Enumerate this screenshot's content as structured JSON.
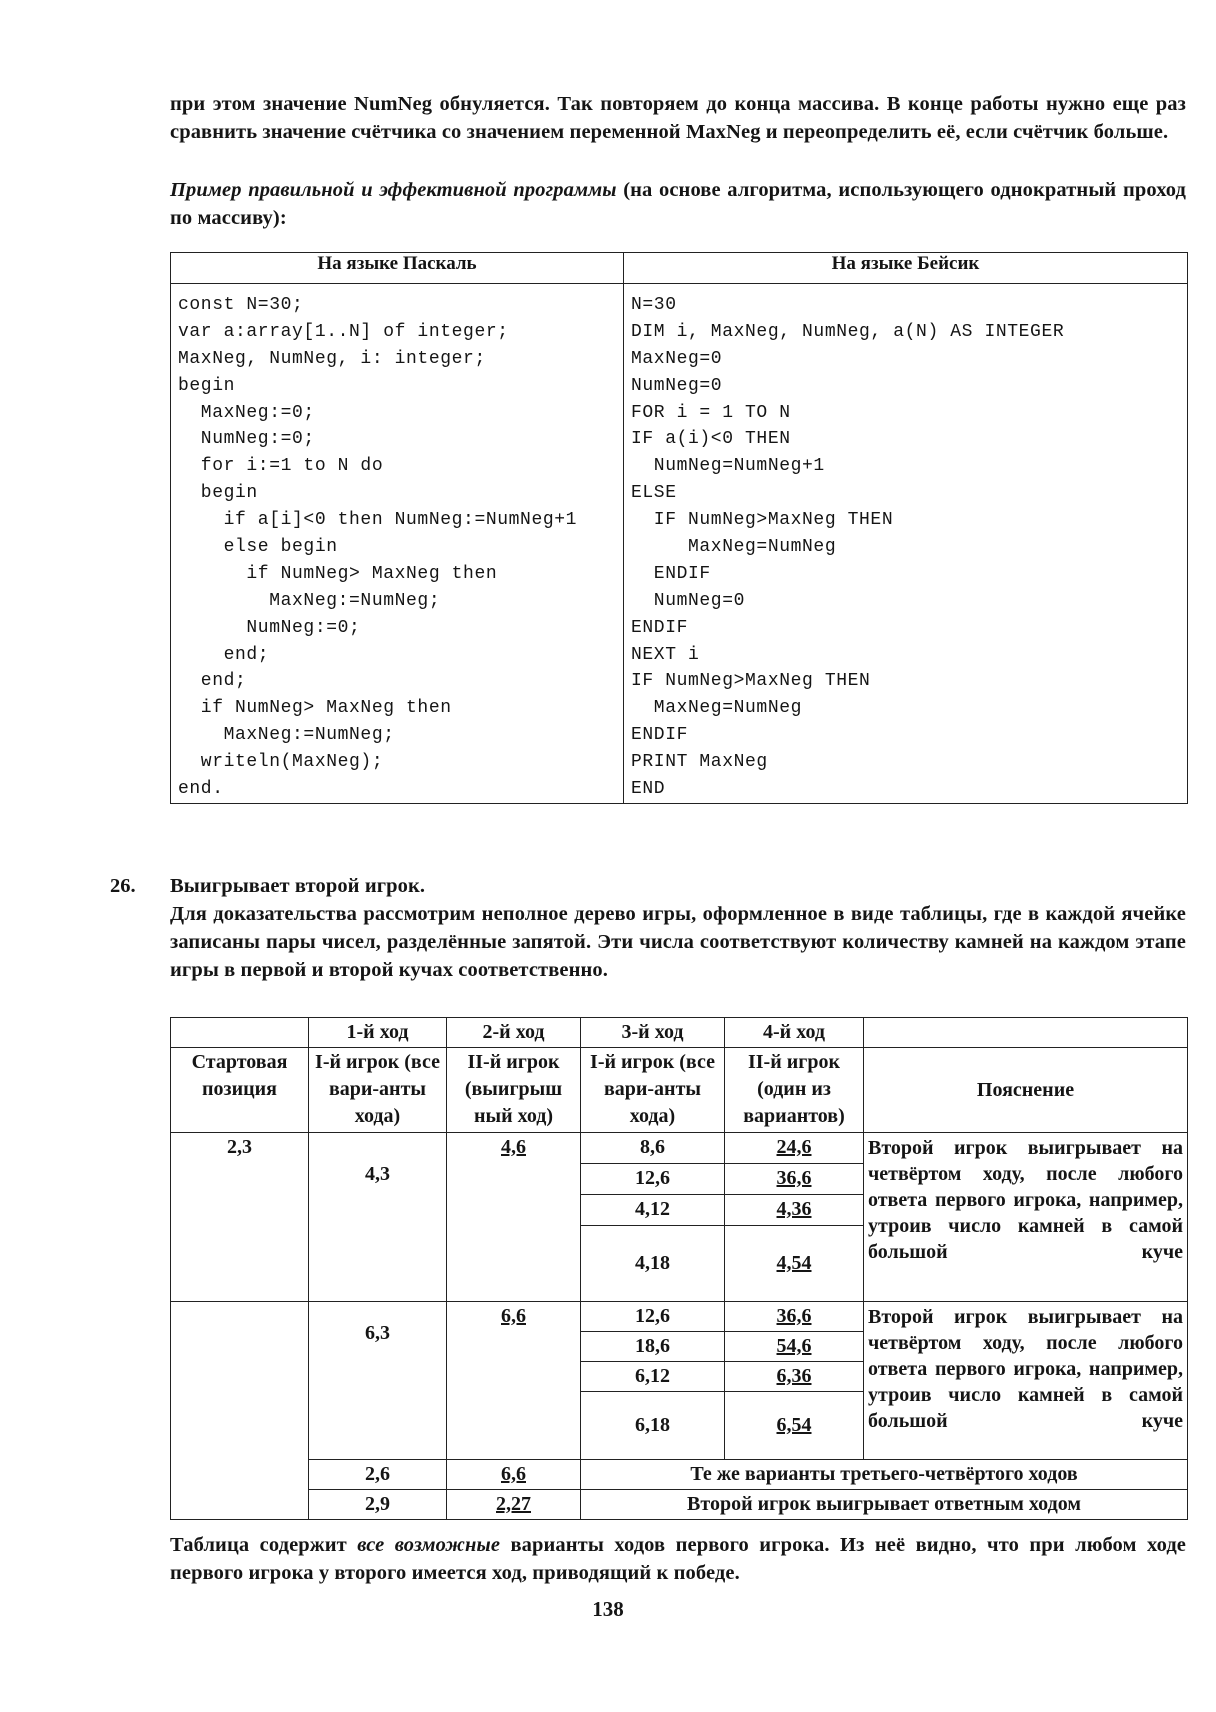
{
  "intro_paragraph": "при этом значение NumNeg обнуляется. Так повторяем до конца массива. В конце работы нужно еще раз сравнить значение счётчика со значением переменной MaxNeg и переопределить её, если счётчик больше.",
  "example_heading_italic": "Пример правильной и эффективной программы",
  "example_heading_rest": " (на основе алгоритма, использующего однократный проход по массиву):",
  "code_table": {
    "pascal_header": "На языке Паскаль",
    "basic_header": "На языке Бейсик",
    "pascal_lines": [
      "const N=30;",
      "var a:array[1..N] of integer;",
      "MaxNeg, NumNeg, i: integer;",
      "begin",
      "  MaxNeg:=0;",
      "  NumNeg:=0;",
      "  for i:=1 to N do",
      "  begin",
      "    if a[i]<0 then NumNeg:=NumNeg+1",
      "    else begin",
      "      if NumNeg> MaxNeg then",
      "        MaxNeg:=NumNeg;",
      "      NumNeg:=0;",
      "    end;",
      "  end;",
      "  if NumNeg> MaxNeg then",
      "    MaxNeg:=NumNeg;",
      "  writeln(MaxNeg);",
      "end."
    ],
    "basic_lines": [
      "N=30",
      "DIM i, MaxNeg, NumNeg, a(N) AS INTEGER",
      "MaxNeg=0",
      "NumNeg=0",
      "FOR i = 1 TO N",
      "IF a(i)<0 THEN",
      "  NumNeg=NumNeg+1",
      "ELSE",
      "  IF NumNeg>MaxNeg THEN",
      "     MaxNeg=NumNeg",
      "  ENDIF",
      "  NumNeg=0",
      "ENDIF",
      "NEXT i",
      "IF NumNeg>MaxNeg THEN",
      "  MaxNeg=NumNeg",
      "ENDIF",
      "PRINT MaxNeg",
      "END"
    ]
  },
  "task26": {
    "number": "26.",
    "answer": "Выигрывает второй игрок.",
    "explanation": "Для доказательства рассмотрим неполное дерево игры, оформленное в виде таблицы, где в каждой ячейке записаны пары чисел, разделённые запятой. Эти числа соответствуют количеству камней на каждом этапе игры в первой и второй кучах соответственно."
  },
  "game_table": {
    "moves": [
      "1-й ход",
      "2-й ход",
      "3-й ход",
      "4-й ход"
    ],
    "start_header": "Стартовая позиция",
    "col_headers": [
      "I-й игрок (все варианты хода)",
      "II-й игрок (выигрышный ход)",
      "I-й игрок (все варианты хода)",
      "II-й игрок (один из вариантов)"
    ],
    "col_headers_display": [
      "I-й игрок (все вари-анты хода)",
      "II-й игрок (выигрыш ный ход)",
      "I-й игрок (все вари-анты хода)",
      "II-й игрок (один из вариантов)"
    ],
    "explain_header": "Пояснение",
    "start": "2,3",
    "block1": {
      "move1": "4,3",
      "move2": "4,6",
      "rows": [
        [
          "8,6",
          "24,6"
        ],
        [
          "12,6",
          "36,6"
        ],
        [
          "4,12",
          "4,36"
        ],
        [
          "4,18",
          "4,54"
        ]
      ],
      "explanation": "Второй игрок выигрывает на четвёртом ходу, после любого ответа первого игрока, например, утроив число камней в самой большой куче"
    },
    "block2": {
      "move1": "6,3",
      "move2": "6,6",
      "rows": [
        [
          "12,6",
          "36,6"
        ],
        [
          "18,6",
          "54,6"
        ],
        [
          "6,12",
          "6,36"
        ],
        [
          "6,18",
          "6,54"
        ]
      ],
      "explanation": "Второй игрок выигрывает на четвёртом ходу, после любого ответа первого игрока, например, утроив число камней в самой большой куче"
    },
    "row_26": {
      "move1": "2,6",
      "move2": "6,6",
      "note": "Те же варианты третьего-четвёртого ходов"
    },
    "row_29": {
      "move1": "2,9",
      "move2": "2,27",
      "note": "Второй игрок выигрывает ответным ходом"
    }
  },
  "closing_before_italic": "Таблица содержит ",
  "closing_italic": "все возможные",
  "closing_after_italic": " варианты ходов первого игрока. Из неё видно, что при любом ходе первого игрока у второго имеется ход, приводящий к победе.",
  "page_number": "138"
}
